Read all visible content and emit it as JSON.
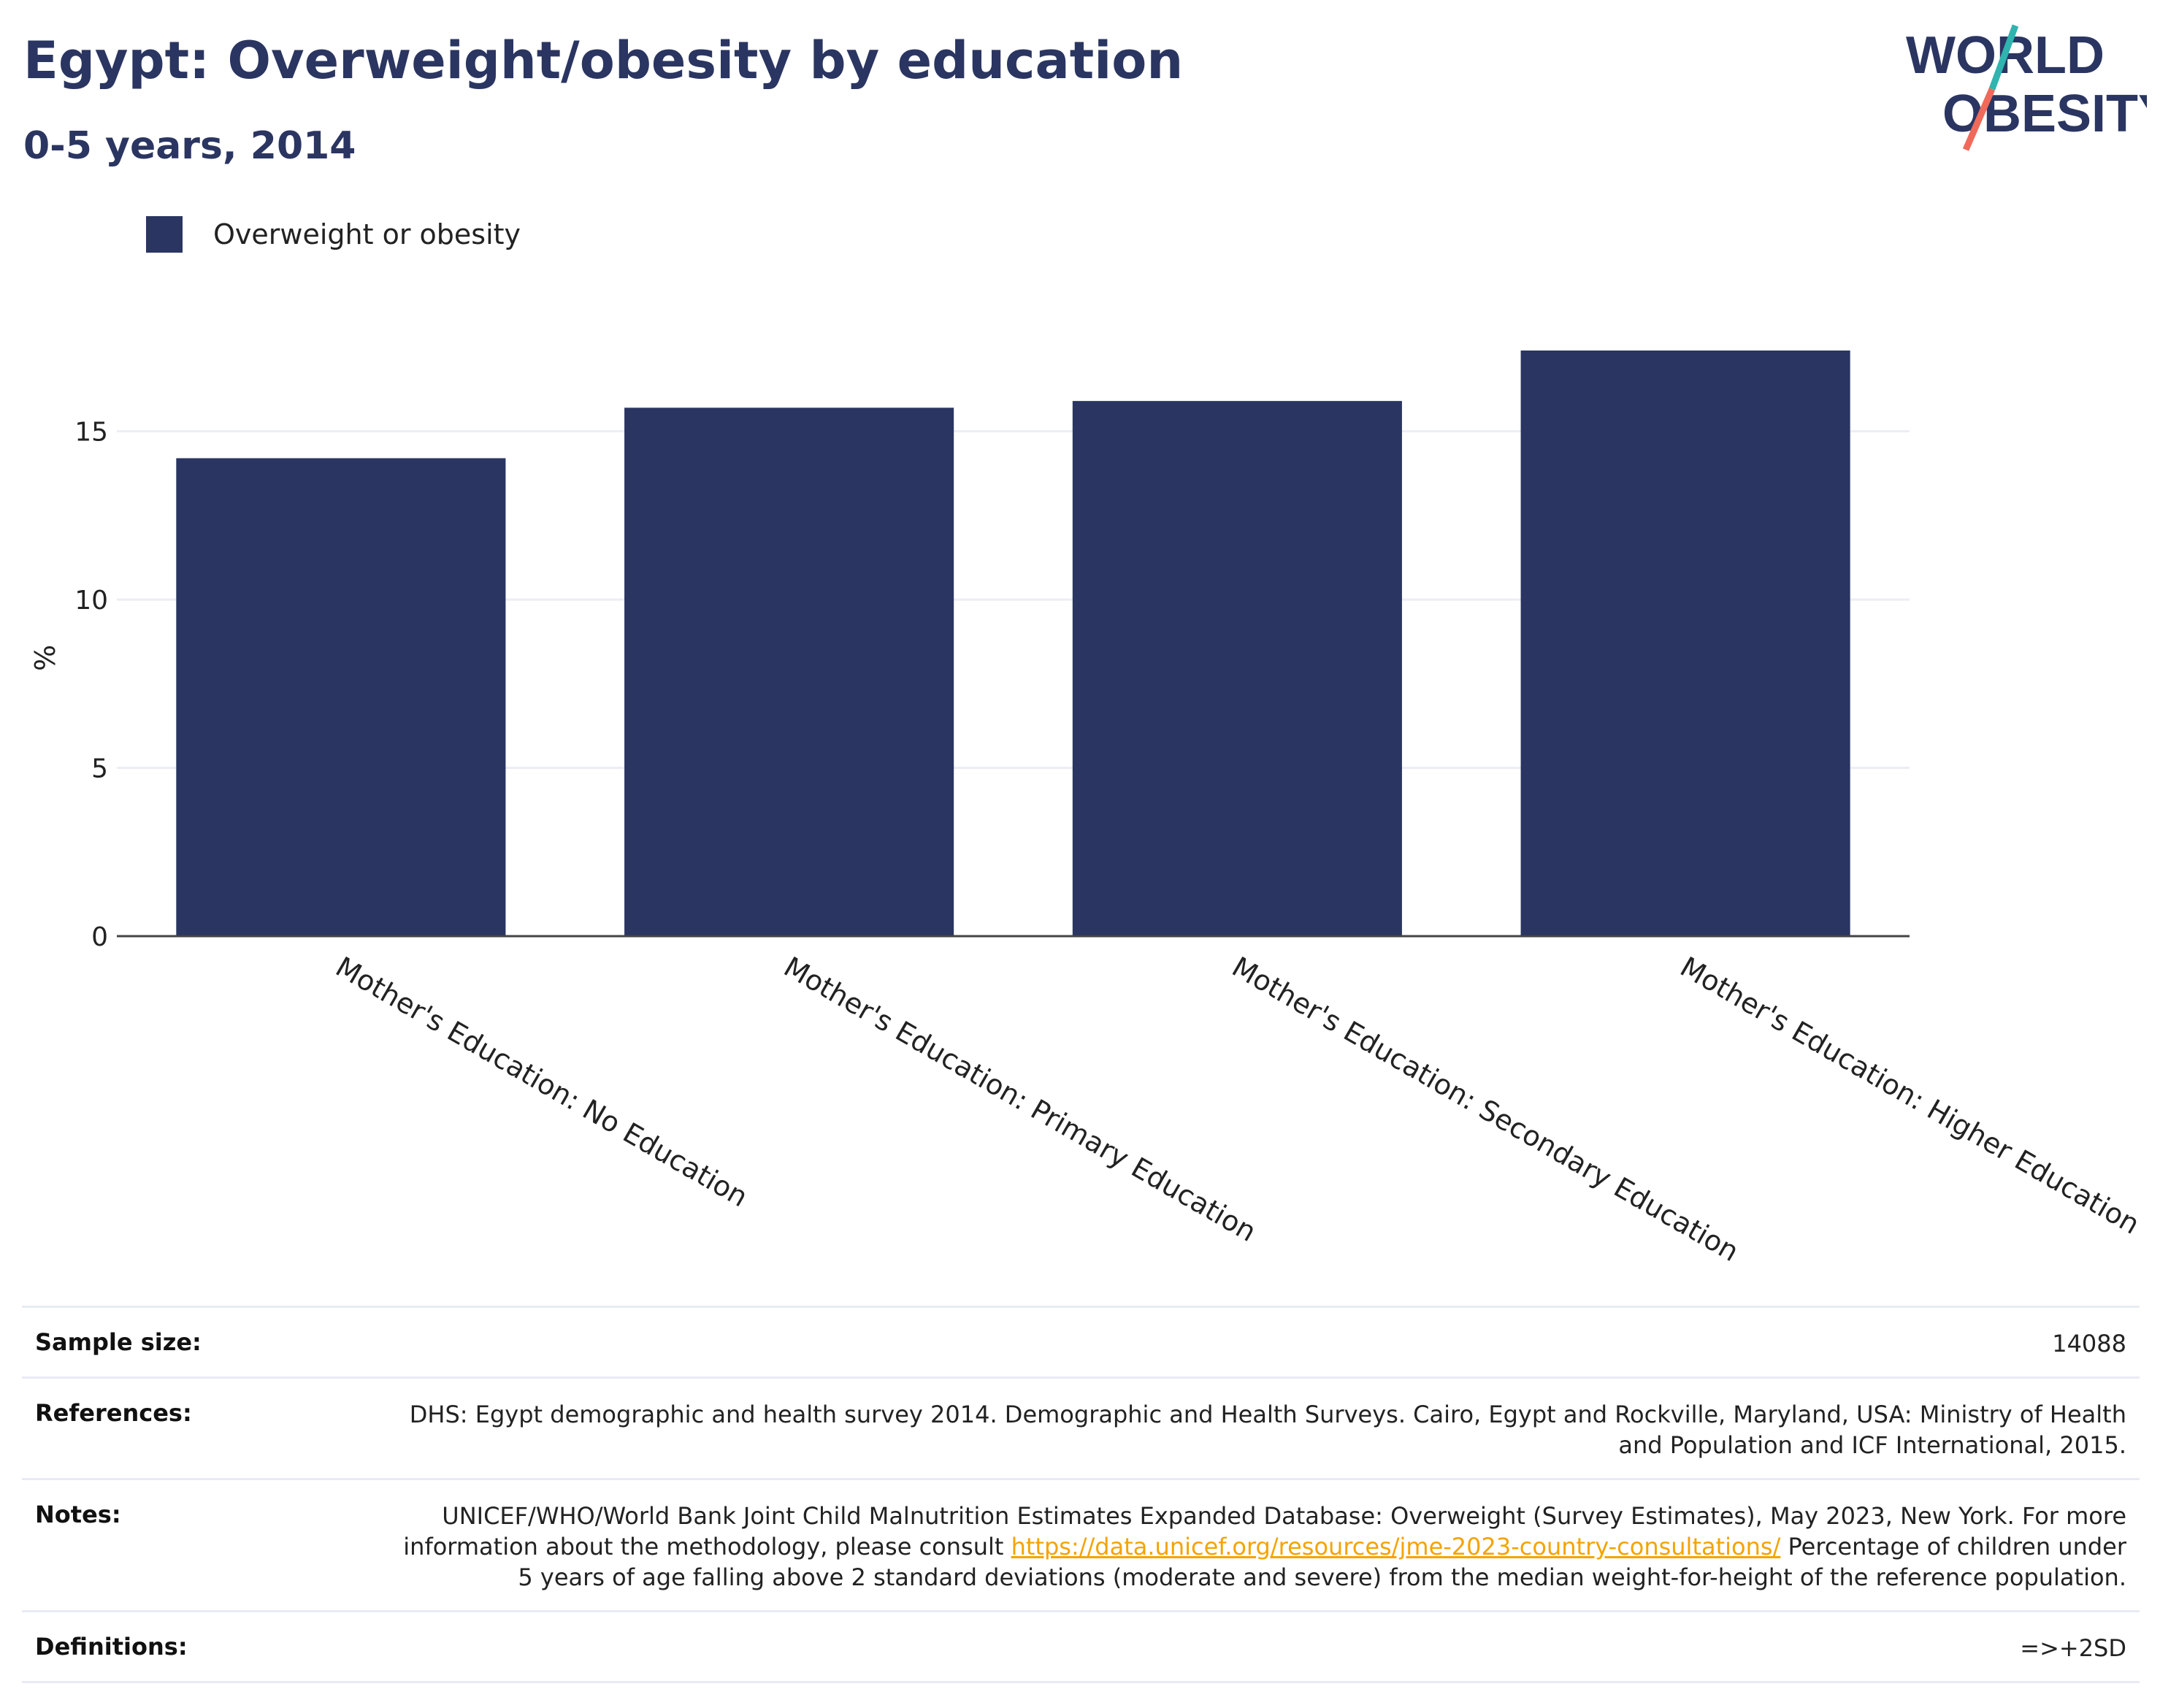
{
  "header": {
    "title": "Egypt: Overweight/obesity by education",
    "subtitle": "0-5 years, 2014"
  },
  "logo": {
    "line1": "WORLD",
    "line2": "OBESITY",
    "accent_teal": "#2fb4b0",
    "accent_coral": "#ef6a5a",
    "text_color": "#2a3561"
  },
  "legend": {
    "items": [
      {
        "label": "Overweight or obesity",
        "color": "#2a3561"
      }
    ]
  },
  "chart_data": {
    "type": "bar",
    "categories": [
      "Mother's Education: No Education",
      "Mother's Education: Primary Education",
      "Mother's Education: Secondary Education",
      "Mother's Education: Higher Education"
    ],
    "series": [
      {
        "name": "Overweight or obesity",
        "values": [
          14.2,
          15.7,
          15.9,
          17.4
        ],
        "color": "#2a3561"
      }
    ],
    "ylabel": "%",
    "xlabel": "",
    "ylim": [
      0,
      17.4
    ],
    "yticks": [
      0,
      5,
      10,
      15
    ],
    "grid": true,
    "legend": "top-left"
  },
  "info": {
    "sample_size_label": "Sample size:",
    "sample_size_value": "14088",
    "references_label": "References:",
    "references_value": "DHS: Egypt demographic and health survey 2014. Demographic and Health Surveys. Cairo, Egypt and Rockville, Maryland, USA: Ministry of Health and Population and ICF International, 2015.",
    "notes_label": "Notes:",
    "notes_text_1": "UNICEF/WHO/World Bank Joint Child Malnutrition Estimates Expanded Database: Overweight (Survey Estimates), May 2023, New York. For more information about the methodology, please consult ",
    "notes_link": "https://data.unicef.org/resources/jme-2023-country-consultations/",
    "notes_text_2": " Percentage of children under 5 years of age falling above 2 standard deviations (moderate and severe) from the median weight-for-height of the reference population.",
    "definitions_label": "Definitions:",
    "definitions_value": "=>+2SD"
  }
}
